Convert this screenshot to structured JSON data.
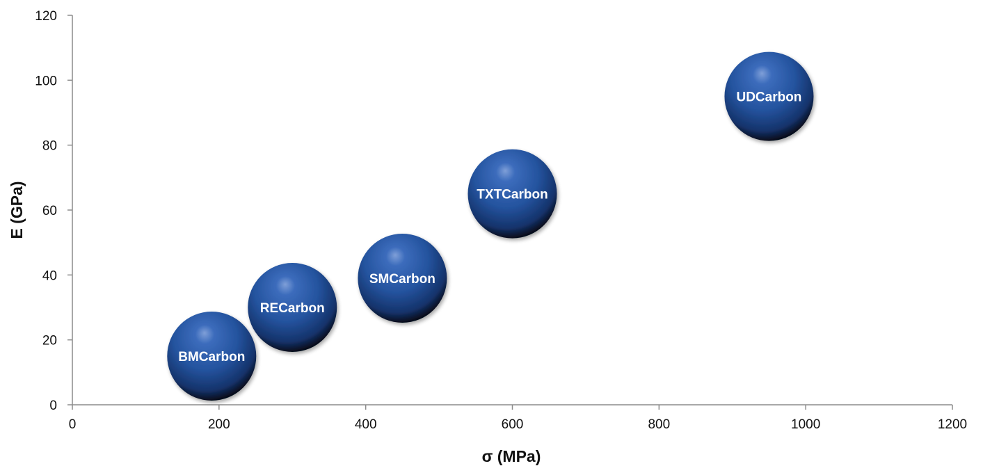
{
  "chart_data": {
    "type": "scatter",
    "xlabel": "σ  (MPa)",
    "ylabel": "E (GPa)",
    "xlim": [
      0,
      1200
    ],
    "ylim": [
      0,
      120
    ],
    "xticks": [
      0,
      200,
      400,
      600,
      800,
      1000,
      1200
    ],
    "yticks": [
      0,
      20,
      40,
      60,
      80,
      100,
      120
    ],
    "grid": false,
    "marker_color": "#2a5aa6",
    "points": [
      {
        "label": "BMCarbon",
        "x": 190,
        "y": 15
      },
      {
        "label": "RECarbon",
        "x": 300,
        "y": 30
      },
      {
        "label": "SMCarbon",
        "x": 450,
        "y": 39
      },
      {
        "label": "TXTCarbon",
        "x": 600,
        "y": 65
      },
      {
        "label": "UDCarbon",
        "x": 950,
        "y": 95
      }
    ]
  }
}
